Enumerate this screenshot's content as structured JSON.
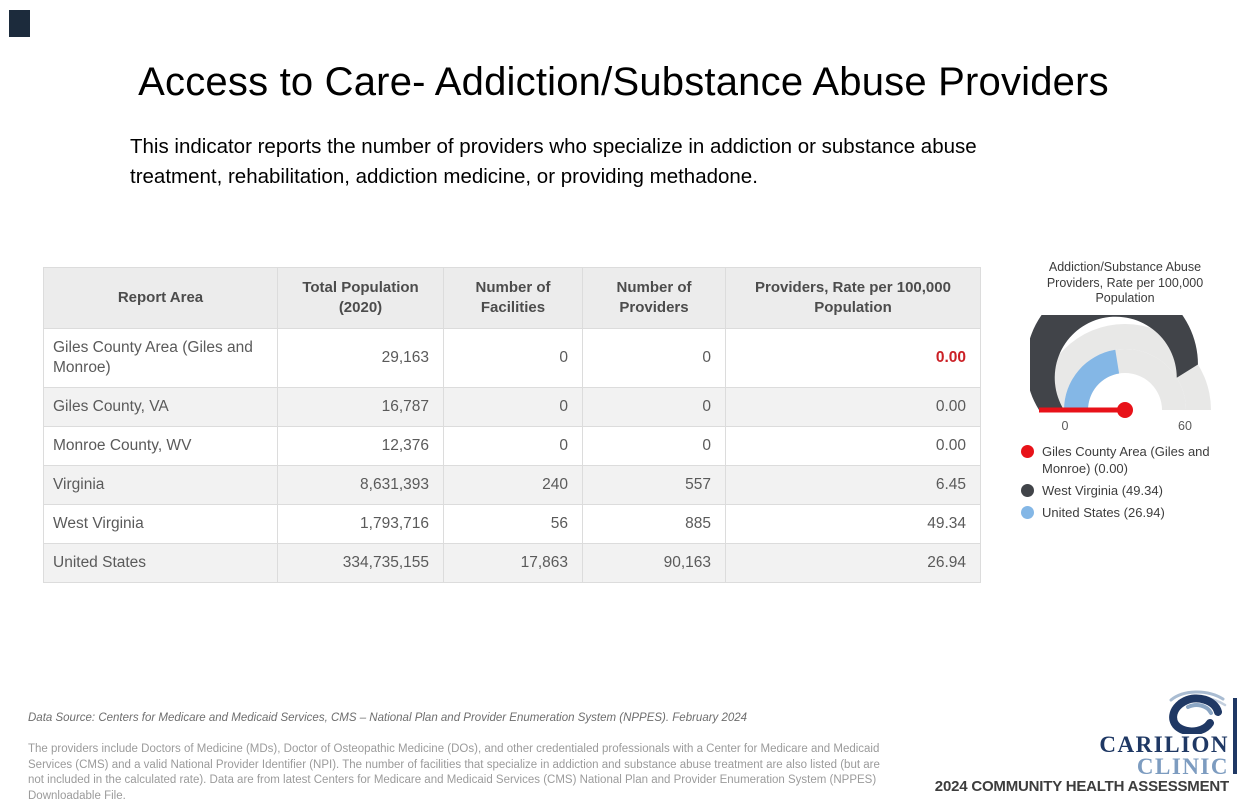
{
  "slide": {
    "title": "Access to Care- Addiction/Substance Abuse Providers",
    "subtitle": "This indicator reports the number of providers who specialize in addiction or substance abuse treatment, rehabilitation, addiction medicine, or providing methadone."
  },
  "table": {
    "columns": [
      "Report Area",
      "Total Population (2020)",
      "Number of Facilities",
      "Number of Providers",
      "Providers, Rate per 100,000 Population"
    ],
    "rows": [
      {
        "area": "Giles County Area (Giles and Monroe)",
        "population": "29,163",
        "facilities": "0",
        "providers": "0",
        "rate": "0.00",
        "rate_color": "#cb2026"
      },
      {
        "area": "Giles County, VA",
        "population": "16,787",
        "facilities": "0",
        "providers": "0",
        "rate": "0.00"
      },
      {
        "area": "Monroe County, WV",
        "population": "12,376",
        "facilities": "0",
        "providers": "0",
        "rate": "0.00"
      },
      {
        "area": "Virginia",
        "population": "8,631,393",
        "facilities": "240",
        "providers": "557",
        "rate": "6.45"
      },
      {
        "area": "West Virginia",
        "population": "1,793,716",
        "facilities": "56",
        "providers": "885",
        "rate": "49.34"
      },
      {
        "area": "United States",
        "population": "334,735,155",
        "facilities": "17,863",
        "providers": "90,163",
        "rate": "26.94"
      }
    ]
  },
  "chart_data": {
    "type": "gauge",
    "title": "Addiction/Substance Abuse Providers, Rate per 100,000 Population",
    "min": 0,
    "max": 60,
    "axis_ticks": [
      "0",
      "60"
    ],
    "track_color": "#e8e8e7",
    "series": [
      {
        "name": "Giles County Area (Giles and Monroe)",
        "value": 0.0,
        "color": "#e81219",
        "role": "needle"
      },
      {
        "name": "West Virginia",
        "value": 49.34,
        "color": "#414449",
        "role": "outer-ring"
      },
      {
        "name": "United States",
        "value": 26.94,
        "color": "#84b7e6",
        "role": "inner-ring"
      }
    ],
    "legend": [
      {
        "label": "Giles County Area (Giles and Monroe) (0.00)",
        "color": "#e81219"
      },
      {
        "label": "West Virginia (49.34)",
        "color": "#414449"
      },
      {
        "label": "United States (26.94)",
        "color": "#84b7e6"
      }
    ]
  },
  "footer": {
    "data_source": "Data Source: Centers for Medicare and Medicaid Services, CMS – National Plan and Provider Enumeration System (NPPES). February 2024",
    "note": "The providers include Doctors of Medicine (MDs), Doctor of Osteopathic Medicine (DOs), and other credentialed professionals with a Center for Medicare and Medicaid Services (CMS) and a valid National Provider Identifier (NPI). The number of facilities that specialize in addiction and substance abuse treatment are also listed (but are not included in the calculated rate). Data are from latest Centers for Medicare and Medicaid Services (CMS) National Plan and Provider Enumeration System (NPPES) Downloadable File."
  },
  "branding": {
    "logo_line1": "CARILION",
    "logo_line2": "CLINIC",
    "tagline": "2024 COMMUNITY HEALTH ASSESSMENT",
    "navy": "#1f3864",
    "steel": "#7d9cc0"
  }
}
